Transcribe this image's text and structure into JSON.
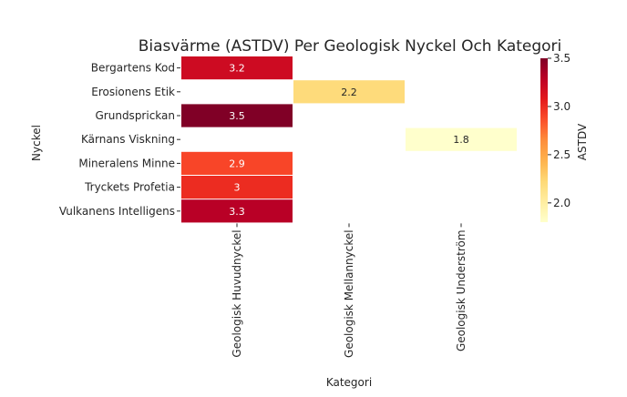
{
  "chart_data": {
    "type": "heatmap",
    "title": "Biasvärme (ASTDV) Per Geologisk Nyckel Och Kategori",
    "xlabel": "Kategori",
    "ylabel": "Nyckel",
    "categories_x": [
      "Geologisk Huvudnyckel",
      "Geologisk Mellannyckel",
      "Geologisk Underström"
    ],
    "categories_y": [
      "Bergartens Kod",
      "Erosionens Etik",
      "Grundsprickan",
      "Kärnans Viskning",
      "Mineralens Minne",
      "Tryckets Profetia",
      "Vulkanens Intelligens"
    ],
    "cells": [
      {
        "row": 0,
        "col": 0,
        "value": 3.2,
        "label": "3.2"
      },
      {
        "row": 1,
        "col": 1,
        "value": 2.2,
        "label": "2.2"
      },
      {
        "row": 2,
        "col": 0,
        "value": 3.5,
        "label": "3.5"
      },
      {
        "row": 3,
        "col": 2,
        "value": 1.8,
        "label": "1.8"
      },
      {
        "row": 4,
        "col": 0,
        "value": 2.9,
        "label": "2.9"
      },
      {
        "row": 5,
        "col": 0,
        "value": 3.0,
        "label": "3"
      },
      {
        "row": 6,
        "col": 0,
        "value": 3.3,
        "label": "3.3"
      }
    ],
    "colorbar": {
      "label": "ASTDV",
      "range": [
        1.8,
        3.5
      ],
      "ticks": [
        2.0,
        2.5,
        3.0,
        3.5
      ],
      "tick_labels": [
        "2.0",
        "2.5",
        "3.0",
        "3.5"
      ],
      "colormap": "YlOrRd"
    },
    "colors": {
      "text_dark": "#262626",
      "text_light": "#ffffff",
      "gap": "#ffffff"
    }
  }
}
